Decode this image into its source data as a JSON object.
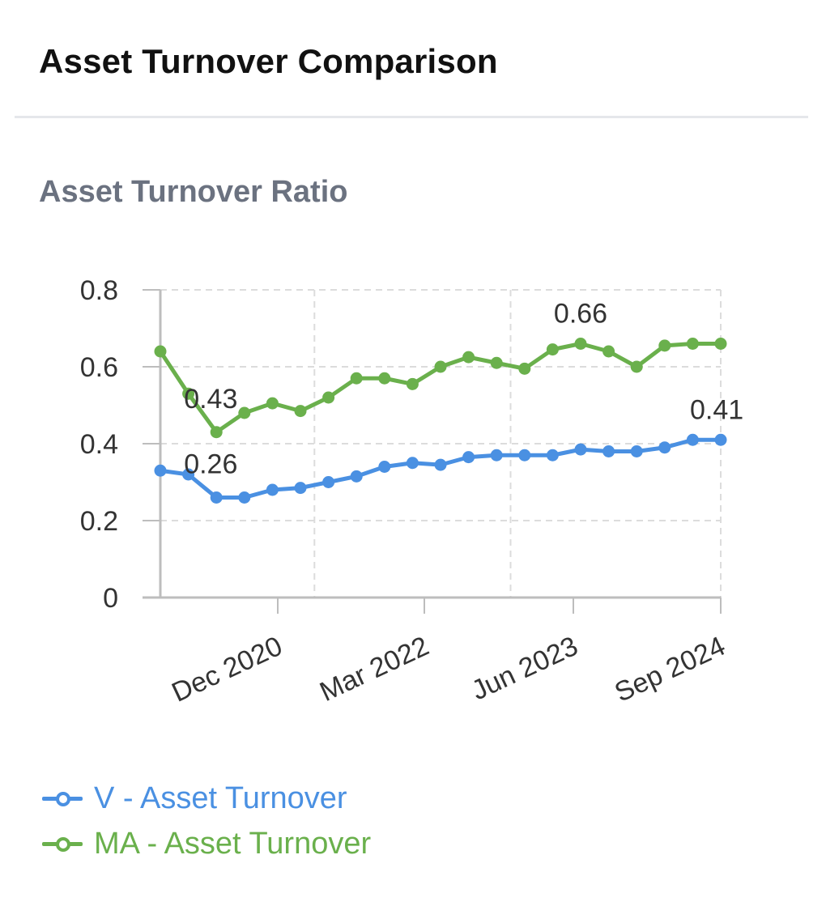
{
  "header": {
    "title": "Asset Turnover Comparison"
  },
  "chart_data": {
    "type": "line",
    "title": "Asset Turnover Ratio",
    "xlabel": "",
    "ylabel": "",
    "ylim": [
      0,
      0.8
    ],
    "yticks": [
      "0",
      "0.2",
      "0.4",
      "0.6",
      "0.8"
    ],
    "x_tick_labels": [
      "Dec 2020",
      "Mar 2022",
      "Jun 2023",
      "Sep 2024"
    ],
    "x": [
      "Sep 2019",
      "Dec 2019",
      "Mar 2020",
      "Jun 2020",
      "Sep 2020",
      "Dec 2020",
      "Mar 2021",
      "Jun 2021",
      "Sep 2021",
      "Dec 2021",
      "Mar 2022",
      "Jun 2022",
      "Sep 2022",
      "Dec 2022",
      "Mar 2023",
      "Jun 2023",
      "Sep 2023",
      "Dec 2023",
      "Mar 2024",
      "Jun 2024",
      "Sep 2024"
    ],
    "series": [
      {
        "name": "V - Asset Turnover",
        "color": "#4a90e2",
        "values": [
          0.33,
          0.32,
          0.26,
          0.26,
          0.28,
          0.285,
          0.3,
          0.315,
          0.34,
          0.35,
          0.345,
          0.365,
          0.37,
          0.37,
          0.37,
          0.385,
          0.38,
          0.38,
          0.39,
          0.41,
          0.41
        ],
        "annotations": [
          {
            "index": 2,
            "label": "0.26"
          },
          {
            "index": 20,
            "label": "0.41"
          }
        ]
      },
      {
        "name": "MA - Asset Turnover",
        "color": "#6ab04c",
        "values": [
          0.64,
          0.53,
          0.43,
          0.48,
          0.505,
          0.485,
          0.52,
          0.57,
          0.57,
          0.555,
          0.6,
          0.625,
          0.61,
          0.595,
          0.645,
          0.66,
          0.64,
          0.6,
          0.655,
          0.66,
          0.66
        ],
        "annotations": [
          {
            "index": 2,
            "label": "0.43"
          },
          {
            "index": 15,
            "label": "0.66"
          }
        ]
      }
    ],
    "grid": true,
    "legend": "bottom-left"
  }
}
